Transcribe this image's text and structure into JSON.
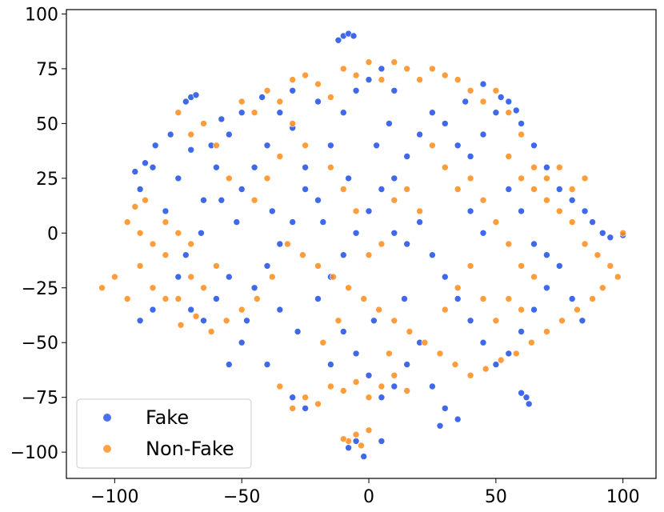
{
  "chart_data": {
    "type": "scatter",
    "title": "",
    "xlabel": "",
    "ylabel": "",
    "xlim": [
      -119,
      113
    ],
    "ylim": [
      -112,
      102
    ],
    "xticks": [
      -100,
      -50,
      0,
      50,
      100
    ],
    "yticks": [
      -100,
      -75,
      -50,
      -25,
      0,
      25,
      50,
      75,
      100
    ],
    "xtick_labels": [
      "−100",
      "−50",
      "0",
      "50",
      "100"
    ],
    "ytick_labels": [
      "−100",
      "−75",
      "−50",
      "−25",
      "0",
      "25",
      "50",
      "75",
      "100"
    ],
    "grid": false,
    "legend_position": "bottom-left",
    "series": [
      {
        "name": "Fake",
        "color": "#1f4fe6",
        "points_note_only_for_rendering": false,
        "points": [
          [
            -70,
            62
          ],
          [
            -72,
            60
          ],
          [
            -68,
            63
          ],
          [
            -35,
            55
          ],
          [
            -30,
            48
          ],
          [
            -40,
            40
          ],
          [
            -55,
            45
          ],
          [
            -60,
            30
          ],
          [
            -45,
            30
          ],
          [
            -50,
            20
          ],
          [
            -65,
            15
          ],
          [
            -75,
            25
          ],
          [
            -80,
            10
          ],
          [
            -85,
            30
          ],
          [
            -90,
            20
          ],
          [
            -38,
            10
          ],
          [
            -30,
            5
          ],
          [
            -20,
            15
          ],
          [
            -25,
            30
          ],
          [
            -15,
            40
          ],
          [
            -10,
            55
          ],
          [
            -5,
            65
          ],
          [
            0,
            70
          ],
          [
            5,
            75
          ],
          [
            10,
            65
          ],
          [
            -20,
            60
          ],
          [
            -30,
            65
          ],
          [
            -42,
            62
          ],
          [
            -50,
            55
          ],
          [
            -58,
            52
          ],
          [
            -62,
            40
          ],
          [
            -70,
            38
          ],
          [
            -78,
            45
          ],
          [
            -84,
            40
          ],
          [
            -88,
            32
          ],
          [
            -92,
            28
          ],
          [
            -35,
            -5
          ],
          [
            -40,
            -15
          ],
          [
            -45,
            -25
          ],
          [
            -55,
            -20
          ],
          [
            -60,
            -30
          ],
          [
            -65,
            -40
          ],
          [
            -70,
            -35
          ],
          [
            -75,
            -20
          ],
          [
            -85,
            -35
          ],
          [
            -90,
            -40
          ],
          [
            -20,
            -30
          ],
          [
            -15,
            -20
          ],
          [
            -10,
            -10
          ],
          [
            -5,
            0
          ],
          [
            0,
            10
          ],
          [
            5,
            20
          ],
          [
            10,
            25
          ],
          [
            15,
            35
          ],
          [
            20,
            45
          ],
          [
            25,
            55
          ],
          [
            30,
            50
          ],
          [
            35,
            40
          ],
          [
            40,
            35
          ],
          [
            45,
            45
          ],
          [
            50,
            55
          ],
          [
            55,
            60
          ],
          [
            60,
            50
          ],
          [
            65,
            40
          ],
          [
            70,
            30
          ],
          [
            75,
            20
          ],
          [
            80,
            15
          ],
          [
            85,
            10
          ],
          [
            88,
            5
          ],
          [
            92,
            0
          ],
          [
            95,
            -2
          ],
          [
            100,
            -1
          ],
          [
            30,
            -20
          ],
          [
            35,
            -30
          ],
          [
            40,
            -40
          ],
          [
            45,
            -50
          ],
          [
            50,
            -60
          ],
          [
            55,
            -55
          ],
          [
            60,
            -45
          ],
          [
            65,
            -35
          ],
          [
            70,
            -25
          ],
          [
            75,
            -15
          ],
          [
            20,
            -50
          ],
          [
            15,
            -60
          ],
          [
            10,
            -70
          ],
          [
            5,
            -75
          ],
          [
            0,
            -65
          ],
          [
            -5,
            -55
          ],
          [
            -10,
            -45
          ],
          [
            -15,
            -60
          ],
          [
            25,
            -70
          ],
          [
            30,
            -80
          ],
          [
            35,
            -85
          ],
          [
            28,
            -88
          ],
          [
            62,
            -75
          ],
          [
            63,
            -78
          ],
          [
            60,
            -73
          ],
          [
            -10,
            90
          ],
          [
            -8,
            91
          ],
          [
            -6,
            90
          ],
          [
            -12,
            88
          ],
          [
            -5,
            -95
          ],
          [
            -8,
            -98
          ],
          [
            -2,
            -102
          ],
          [
            5,
            -95
          ],
          [
            -30,
            -75
          ],
          [
            -25,
            -80
          ],
          [
            -40,
            -60
          ],
          [
            -50,
            -50
          ],
          [
            -55,
            -60
          ],
          [
            10,
            0
          ],
          [
            15,
            -5
          ],
          [
            20,
            5
          ],
          [
            25,
            -10
          ],
          [
            40,
            10
          ],
          [
            45,
            0
          ],
          [
            55,
            20
          ],
          [
            60,
            10
          ],
          [
            65,
            -5
          ],
          [
            70,
            -10
          ],
          [
            38,
            60
          ],
          [
            45,
            68
          ],
          [
            52,
            62
          ],
          [
            58,
            56
          ],
          [
            -25,
            20
          ],
          [
            -18,
            5
          ],
          [
            -8,
            25
          ],
          [
            3,
            40
          ],
          [
            8,
            50
          ],
          [
            14,
            -30
          ],
          [
            2,
            -40
          ],
          [
            -28,
            -45
          ],
          [
            -35,
            -35
          ],
          [
            -48,
            -40
          ],
          [
            -52,
            5
          ],
          [
            -58,
            15
          ],
          [
            -66,
            0
          ],
          [
            -72,
            -10
          ],
          [
            80,
            -30
          ],
          [
            84,
            -40
          ]
        ]
      },
      {
        "name": "Non-Fake",
        "color": "#ff8c1a",
        "points": [
          [
            -105,
            -25
          ],
          [
            -100,
            -20
          ],
          [
            -95,
            -30
          ],
          [
            -90,
            -15
          ],
          [
            -85,
            -25
          ],
          [
            -80,
            -10
          ],
          [
            -75,
            -30
          ],
          [
            -70,
            -20
          ],
          [
            -65,
            -25
          ],
          [
            -60,
            -15
          ],
          [
            -95,
            5
          ],
          [
            -90,
            0
          ],
          [
            -85,
            -5
          ],
          [
            -80,
            5
          ],
          [
            -75,
            0
          ],
          [
            -70,
            -5
          ],
          [
            -92,
            12
          ],
          [
            -88,
            15
          ],
          [
            -50,
            60
          ],
          [
            -45,
            55
          ],
          [
            -40,
            65
          ],
          [
            -35,
            60
          ],
          [
            -30,
            70
          ],
          [
            -25,
            72
          ],
          [
            -20,
            68
          ],
          [
            -15,
            62
          ],
          [
            -10,
            75
          ],
          [
            -5,
            72
          ],
          [
            0,
            78
          ],
          [
            5,
            70
          ],
          [
            10,
            78
          ],
          [
            15,
            75
          ],
          [
            20,
            70
          ],
          [
            25,
            75
          ],
          [
            30,
            72
          ],
          [
            35,
            70
          ],
          [
            40,
            65
          ],
          [
            45,
            60
          ],
          [
            50,
            65
          ],
          [
            55,
            55
          ],
          [
            60,
            45
          ],
          [
            55,
            35
          ],
          [
            60,
            25
          ],
          [
            65,
            20
          ],
          [
            70,
            25
          ],
          [
            75,
            30
          ],
          [
            80,
            20
          ],
          [
            85,
            25
          ],
          [
            70,
            15
          ],
          [
            65,
            30
          ],
          [
            75,
            10
          ],
          [
            80,
            5
          ],
          [
            85,
            -5
          ],
          [
            90,
            -10
          ],
          [
            95,
            -15
          ],
          [
            100,
            0
          ],
          [
            98,
            -20
          ],
          [
            92,
            -25
          ],
          [
            88,
            -30
          ],
          [
            82,
            -35
          ],
          [
            76,
            -40
          ],
          [
            70,
            -45
          ],
          [
            64,
            -50
          ],
          [
            58,
            -55
          ],
          [
            52,
            -58
          ],
          [
            46,
            -62
          ],
          [
            40,
            -65
          ],
          [
            34,
            -60
          ],
          [
            28,
            -55
          ],
          [
            22,
            -50
          ],
          [
            16,
            -45
          ],
          [
            10,
            -40
          ],
          [
            4,
            -35
          ],
          [
            -2,
            -30
          ],
          [
            -8,
            -25
          ],
          [
            -14,
            -20
          ],
          [
            -20,
            -15
          ],
          [
            -26,
            -10
          ],
          [
            -32,
            -5
          ],
          [
            -38,
            -20
          ],
          [
            -44,
            -30
          ],
          [
            -50,
            -35
          ],
          [
            -56,
            -40
          ],
          [
            -62,
            -45
          ],
          [
            -68,
            -38
          ],
          [
            -74,
            -42
          ],
          [
            -80,
            -30
          ],
          [
            -15,
            -70
          ],
          [
            -10,
            -72
          ],
          [
            -5,
            -68
          ],
          [
            0,
            -75
          ],
          [
            5,
            -70
          ],
          [
            10,
            -65
          ],
          [
            15,
            -72
          ],
          [
            -20,
            -78
          ],
          [
            -25,
            -75
          ],
          [
            -30,
            -80
          ],
          [
            -35,
            -70
          ],
          [
            -8,
            -95
          ],
          [
            -5,
            -92
          ],
          [
            -3,
            -97
          ],
          [
            -10,
            -94
          ],
          [
            0,
            -90
          ],
          [
            25,
            40
          ],
          [
            30,
            30
          ],
          [
            35,
            20
          ],
          [
            40,
            25
          ],
          [
            45,
            15
          ],
          [
            50,
            5
          ],
          [
            55,
            -5
          ],
          [
            60,
            -15
          ],
          [
            65,
            -20
          ],
          [
            20,
            10
          ],
          [
            15,
            20
          ],
          [
            10,
            15
          ],
          [
            5,
            -5
          ],
          [
            0,
            -10
          ],
          [
            -5,
            10
          ],
          [
            -10,
            20
          ],
          [
            -15,
            30
          ],
          [
            -25,
            40
          ],
          [
            -30,
            50
          ],
          [
            -35,
            35
          ],
          [
            -40,
            25
          ],
          [
            -45,
            15
          ],
          [
            -55,
            25
          ],
          [
            -60,
            40
          ],
          [
            -65,
            50
          ],
          [
            -70,
            45
          ],
          [
            -75,
            55
          ],
          [
            30,
            -35
          ],
          [
            35,
            -25
          ],
          [
            40,
            -15
          ],
          [
            45,
            -30
          ],
          [
            50,
            -40
          ],
          [
            55,
            -30
          ],
          [
            60,
            -35
          ],
          [
            -12,
            -40
          ],
          [
            -18,
            -50
          ],
          [
            8,
            -55
          ]
        ]
      }
    ]
  }
}
